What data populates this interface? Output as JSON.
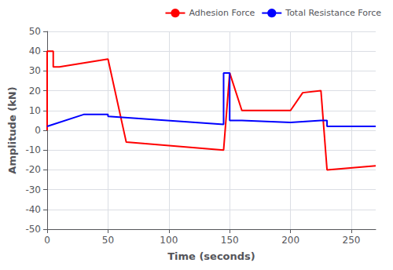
{
  "chart_data": {
    "type": "line",
    "xlabel": "Time (seconds)",
    "ylabel": "Amplitude (kN)",
    "series": [
      {
        "name": "Adhesion Force",
        "color": "#FF0000",
        "x": [
          0,
          0,
          5,
          5,
          10,
          50,
          50,
          65,
          65,
          145,
          145,
          150,
          150,
          160,
          160,
          200,
          200,
          210,
          210,
          225,
          225,
          230,
          230,
          270
        ],
        "values": [
          0,
          40,
          40,
          32,
          32,
          36,
          36,
          -6,
          -6,
          -10,
          -10,
          29,
          29,
          10,
          10,
          10,
          10,
          19,
          19,
          20,
          20,
          -20,
          -20,
          -18
        ]
      },
      {
        "name": "Total Resistance Force",
        "color": "#0000FF",
        "x": [
          0,
          30,
          50,
          50,
          145,
          145,
          150,
          150,
          160,
          200,
          200,
          225,
          225,
          230,
          230,
          270
        ],
        "values": [
          2,
          8,
          8,
          7,
          3,
          29,
          29,
          5,
          5,
          4,
          4,
          5,
          5,
          5,
          2,
          2
        ]
      }
    ],
    "xlim": [
      0,
      270
    ],
    "xticks": [
      0,
      50,
      100,
      150,
      200,
      250
    ],
    "ylim": [
      -50,
      50
    ],
    "yticks": [
      -50,
      -40,
      -30,
      -20,
      -10,
      0,
      10,
      20,
      30,
      40,
      50
    ],
    "grid": true,
    "legend": "upper right"
  }
}
